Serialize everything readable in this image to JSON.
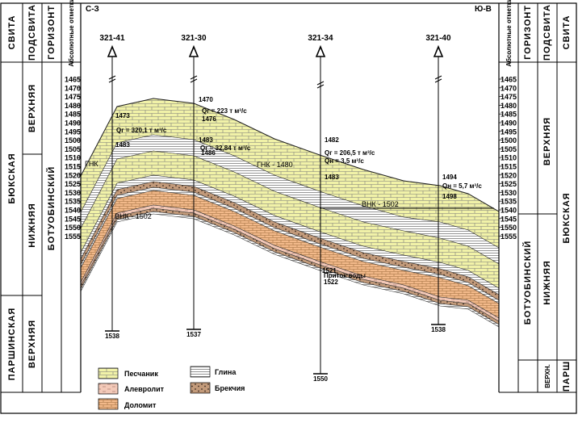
{
  "header": {
    "left": [
      "СВИТА",
      "ПОДСВИТА",
      "ГОРИЗОНТ",
      "Абсолютные отметки"
    ],
    "right": [
      "Абсолютные отметки",
      "ГОРИЗОНТ",
      "ПОДСВИТА",
      "СВИТА"
    ],
    "dir_left": "С-З",
    "dir_right": "Ю-В"
  },
  "left_columns": {
    "svita": [
      {
        "label": "БЮКСКАЯ"
      },
      {
        "label": "ПАРШИНСКАЯ"
      }
    ],
    "podsvita": [
      {
        "label": "ВЕРХНЯЯ"
      },
      {
        "label": "НИЖНЯЯ"
      },
      {
        "label": "ВЕРХНЯЯ"
      }
    ],
    "gorizont": [
      {
        "label": "БОТУОБИНСКИЙ"
      }
    ]
  },
  "right_columns": {
    "svita": [
      {
        "label": "БЮКСКАЯ"
      },
      {
        "label": "ПАРШ"
      }
    ],
    "podsvita": [
      {
        "label": "ВЕРХНЯЯ"
      },
      {
        "label": "НИЖНЯЯ"
      },
      {
        "label": "ВЕРХН."
      }
    ],
    "gorizont": [
      {
        "label": "БОТУОБИНСКИЙ"
      }
    ]
  },
  "depth_scale": {
    "min": 1465,
    "max": 1555,
    "step": 5
  },
  "wells": [
    {
      "id": "321-41",
      "bottom": "1538",
      "ann": [
        "1473",
        "Qг = 320,1 т м³/с",
        "1483"
      ]
    },
    {
      "id": "321-30",
      "bottom": "1537",
      "ann": [
        "1470",
        "Qг = 223 т м³/с",
        "1476",
        "1483",
        "Qг = 32,84 т м³/с",
        "1486"
      ]
    },
    {
      "id": "321-34",
      "bottom": "1550",
      "ann": [
        "1482",
        "Qг = 206,5 т м³/с",
        "Qн = 3,5 м³/с",
        "1483",
        "1521",
        "Приток воды",
        "1522"
      ]
    },
    {
      "id": "321-40",
      "bottom": "1538",
      "ann": [
        "1494",
        "Qн = 5,7 м³/с",
        "1498"
      ]
    }
  ],
  "contacts": {
    "gnk_left": "ГНК",
    "gnk_mid": "ГНК - 1480",
    "vnk_left": "ВНК - 1502",
    "vnk_right": "ВНК - 1502"
  },
  "legend": [
    {
      "label": "Песчаник",
      "pattern": "sand"
    },
    {
      "label": "Глина",
      "pattern": "clay"
    },
    {
      "label": "Алевролит",
      "pattern": "silt"
    },
    {
      "label": "Брекчия",
      "pattern": "breccia"
    },
    {
      "label": "Доломит",
      "pattern": "dolomite"
    }
  ],
  "colors": {
    "sandstone": "#f1f2a8",
    "siltstone": "#f3c9b8",
    "dolomite": "#f2b98a",
    "breccia": "#c29a7a",
    "clay": "#ffffff"
  }
}
